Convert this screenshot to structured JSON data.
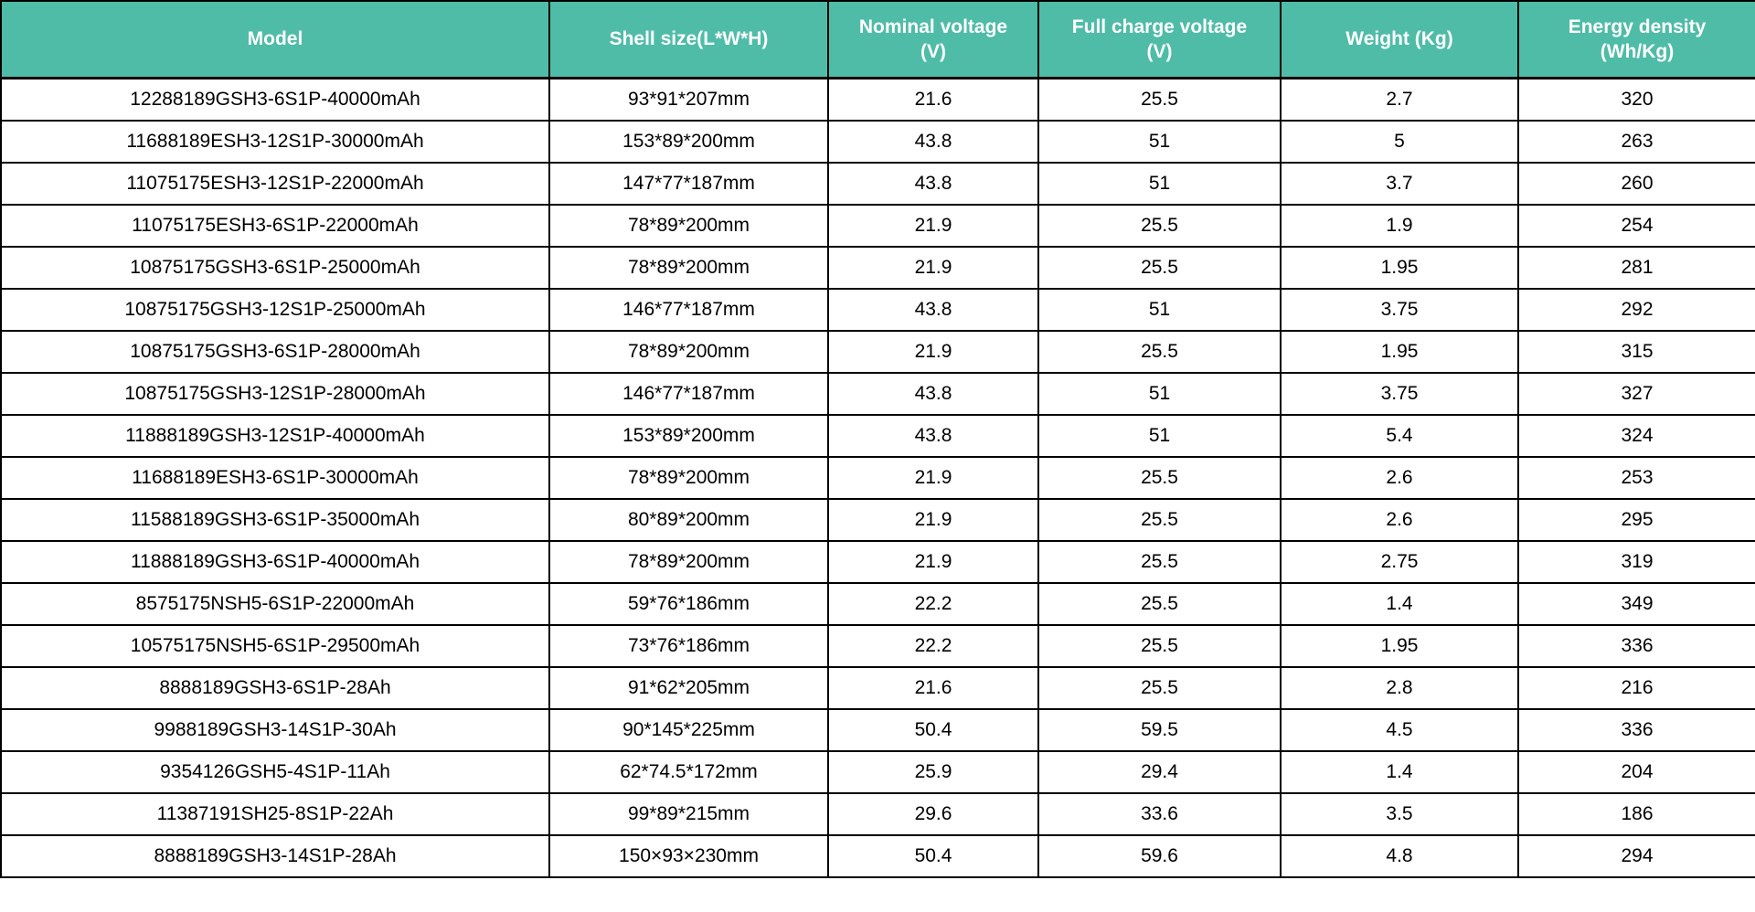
{
  "colors": {
    "header_bg": "#4FBCA8",
    "header_text": "#FFFFFF",
    "row_bg": "#FFFFFF",
    "border": "#000000",
    "cell_text": "#000000"
  },
  "table": {
    "headers": [
      {
        "id": "model",
        "label": "Model"
      },
      {
        "id": "shell-size",
        "label": "Shell size(L*W*H)"
      },
      {
        "id": "nominal-voltage",
        "label": "Nominal voltage\n(V)"
      },
      {
        "id": "full-charge-voltage",
        "label": "Full charge voltage\n(V)"
      },
      {
        "id": "weight",
        "label": "Weight (Kg)"
      },
      {
        "id": "energy-density",
        "label": "Energy density\n(Wh/Kg)"
      }
    ],
    "rows": [
      [
        "12288189GSH3-6S1P-40000mAh",
        "93*91*207mm",
        "21.6",
        "25.5",
        "2.7",
        "320"
      ],
      [
        "11688189ESH3-12S1P-30000mAh",
        "153*89*200mm",
        "43.8",
        "51",
        "5",
        "263"
      ],
      [
        "11075175ESH3-12S1P-22000mAh",
        "147*77*187mm",
        "43.8",
        "51",
        "3.7",
        "260"
      ],
      [
        "11075175ESH3-6S1P-22000mAh",
        "78*89*200mm",
        "21.9",
        "25.5",
        "1.9",
        "254"
      ],
      [
        "10875175GSH3-6S1P-25000mAh",
        "78*89*200mm",
        "21.9",
        "25.5",
        "1.95",
        "281"
      ],
      [
        "10875175GSH3-12S1P-25000mAh",
        "146*77*187mm",
        "43.8",
        "51",
        "3.75",
        "292"
      ],
      [
        "10875175GSH3-6S1P-28000mAh",
        "78*89*200mm",
        "21.9",
        "25.5",
        "1.95",
        "315"
      ],
      [
        "10875175GSH3-12S1P-28000mAh",
        "146*77*187mm",
        "43.8",
        "51",
        "3.75",
        "327"
      ],
      [
        "11888189GSH3-12S1P-40000mAh",
        "153*89*200mm",
        "43.8",
        "51",
        "5.4",
        "324"
      ],
      [
        "11688189ESH3-6S1P-30000mAh",
        "78*89*200mm",
        "21.9",
        "25.5",
        "2.6",
        "253"
      ],
      [
        "11588189GSH3-6S1P-35000mAh",
        "80*89*200mm",
        "21.9",
        "25.5",
        "2.6",
        "295"
      ],
      [
        "11888189GSH3-6S1P-40000mAh",
        "78*89*200mm",
        "21.9",
        "25.5",
        "2.75",
        "319"
      ],
      [
        "8575175NSH5-6S1P-22000mAh",
        "59*76*186mm",
        "22.2",
        "25.5",
        "1.4",
        "349"
      ],
      [
        "10575175NSH5-6S1P-29500mAh",
        "73*76*186mm",
        "22.2",
        "25.5",
        "1.95",
        "336"
      ],
      [
        "8888189GSH3-6S1P-28Ah",
        "91*62*205mm",
        "21.6",
        "25.5",
        "2.8",
        "216"
      ],
      [
        "9988189GSH3-14S1P-30Ah",
        "90*145*225mm",
        "50.4",
        "59.5",
        "4.5",
        "336"
      ],
      [
        "9354126GSH5-4S1P-11Ah",
        "62*74.5*172mm",
        "25.9",
        "29.4",
        "1.4",
        "204"
      ],
      [
        "11387191SH25-8S1P-22Ah",
        "99*89*215mm",
        "29.6",
        "33.6",
        "3.5",
        "186"
      ],
      [
        "8888189GSH3-14S1P-28Ah",
        "150×93×230mm",
        "50.4",
        "59.6",
        "4.8",
        "294"
      ]
    ]
  }
}
